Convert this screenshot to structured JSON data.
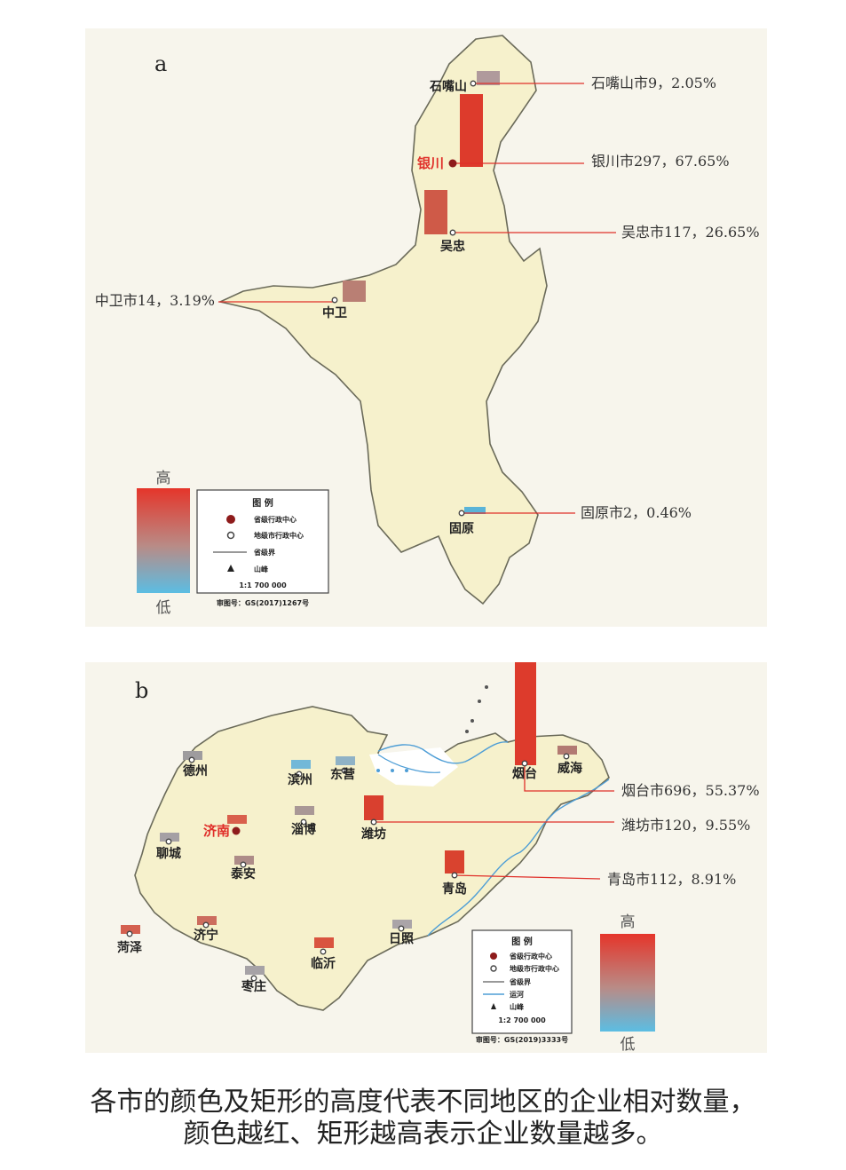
{
  "panel_a": {
    "label": "a",
    "cities": [
      {
        "name": "石嘴山",
        "callout": "石嘴山市9，2.05%",
        "count": 9,
        "share_pct": 2.05,
        "capital": false,
        "bar_color": "#b09a9c"
      },
      {
        "name": "银川",
        "callout": "银川市297，67.65%",
        "count": 297,
        "share_pct": 67.65,
        "capital": true,
        "bar_color": "#dd3b2c"
      },
      {
        "name": "吴忠",
        "callout": "吴忠市117，26.65%",
        "count": 117,
        "share_pct": 26.65,
        "capital": false,
        "bar_color": "#cf5a48"
      },
      {
        "name": "中卫",
        "callout": "中卫市14，3.19%",
        "count": 14,
        "share_pct": 3.19,
        "capital": false,
        "bar_color": "#b97f74"
      },
      {
        "name": "固原",
        "callout": "固原市2，0.46%",
        "count": 2,
        "share_pct": 0.46,
        "capital": false,
        "bar_color": "#5ab4d8"
      }
    ],
    "scale_high": "高",
    "scale_low": "低",
    "legend": {
      "title": "图 例",
      "items": [
        "省级行政中心",
        "地级市行政中心",
        "省级界",
        "山峰"
      ],
      "scale": "1:1 700 000",
      "approval": "审图号：GS(2017)1267号"
    }
  },
  "panel_b": {
    "label": "b",
    "cities": [
      {
        "name": "烟台",
        "callout": "烟台市696，55.37%",
        "count": 696,
        "share_pct": 55.37,
        "capital": false,
        "bar_color": "#dd3b2c"
      },
      {
        "name": "潍坊",
        "callout": "潍坊市120，9.55%",
        "count": 120,
        "share_pct": 9.55,
        "capital": false,
        "bar_color": "#d9402f"
      },
      {
        "name": "青岛",
        "callout": "青岛市112，8.91%",
        "count": 112,
        "share_pct": 8.91,
        "capital": false,
        "bar_color": "#d9432f"
      },
      {
        "name": "济南",
        "callout": "",
        "capital": true,
        "bar_color": "#d9604c"
      },
      {
        "name": "德州",
        "callout": "",
        "capital": false,
        "bar_color": "#9e9c9e"
      },
      {
        "name": "滨州",
        "callout": "",
        "capital": false,
        "bar_color": "#72b8d8"
      },
      {
        "name": "东营",
        "callout": "",
        "capital": false,
        "bar_color": "#8fb2c6"
      },
      {
        "name": "威海",
        "callout": "",
        "capital": false,
        "bar_color": "#b27a72"
      },
      {
        "name": "淄博",
        "callout": "",
        "capital": false,
        "bar_color": "#a99896"
      },
      {
        "name": "聊城",
        "callout": "",
        "capital": false,
        "bar_color": "#a5a0a4"
      },
      {
        "name": "泰安",
        "callout": "",
        "capital": false,
        "bar_color": "#ad8c88"
      },
      {
        "name": "济宁",
        "callout": "",
        "capital": false,
        "bar_color": "#cc6d5e"
      },
      {
        "name": "菏泽",
        "callout": "",
        "capital": false,
        "bar_color": "#d4604f"
      },
      {
        "name": "临沂",
        "callout": "",
        "capital": false,
        "bar_color": "#d9543f"
      },
      {
        "name": "日照",
        "callout": "",
        "capital": false,
        "bar_color": "#aaa4a8"
      },
      {
        "name": "枣庄",
        "callout": "",
        "capital": false,
        "bar_color": "#a6a2a6"
      }
    ],
    "scale_high": "高",
    "scale_low": "低",
    "legend": {
      "title": "图 例",
      "items": [
        "省级行政中心",
        "地级市行政中心",
        "省级界",
        "运河",
        "山峰"
      ],
      "scale": "1:2 700 000",
      "approval": "审图号：GS(2019)3333号"
    }
  },
  "colors": {
    "land": "#f6f1cc",
    "high": "#e5352a",
    "low": "#5bbde3",
    "callout_line": "#e0302a",
    "river": "#4e9ed6"
  },
  "caption": {
    "line1": "各市的颜色及矩形的高度代表不同地区的企业相对数量，",
    "line2": "颜色越红、矩形越高表示企业数量越多。"
  }
}
